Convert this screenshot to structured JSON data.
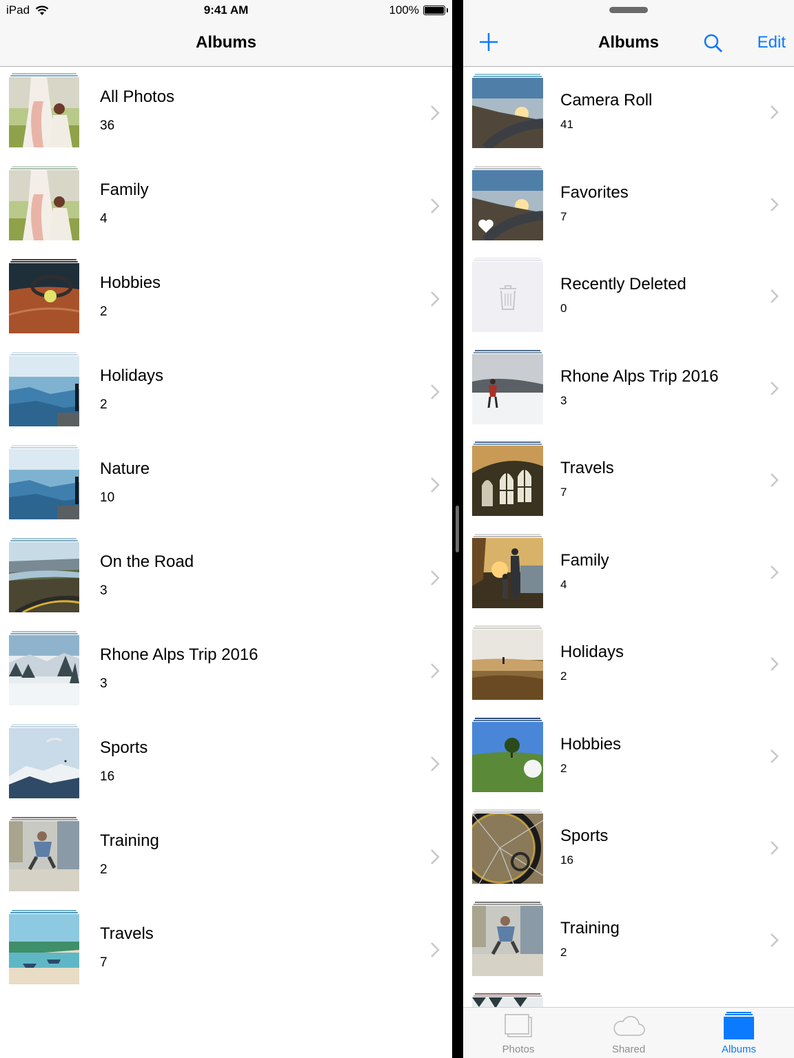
{
  "status_bar": {
    "device": "iPad",
    "time": "9:41 AM",
    "battery": "100%"
  },
  "left_pane": {
    "title": "Albums",
    "albums": [
      {
        "name": "All Photos",
        "count": "36"
      },
      {
        "name": "Family",
        "count": "4"
      },
      {
        "name": "Hobbies",
        "count": "2"
      },
      {
        "name": "Holidays",
        "count": "2"
      },
      {
        "name": "Nature",
        "count": "10"
      },
      {
        "name": "On the Road",
        "count": "3"
      },
      {
        "name": "Rhone Alps Trip 2016",
        "count": "3"
      },
      {
        "name": "Sports",
        "count": "16"
      },
      {
        "name": "Training",
        "count": "2"
      },
      {
        "name": "Travels",
        "count": "7"
      }
    ]
  },
  "right_pane": {
    "title": "Albums",
    "edit_label": "Edit",
    "albums": [
      {
        "name": "Camera Roll",
        "count": "41"
      },
      {
        "name": "Favorites",
        "count": "7"
      },
      {
        "name": "Recently Deleted",
        "count": "0"
      },
      {
        "name": "Rhone Alps Trip 2016",
        "count": "3"
      },
      {
        "name": "Travels",
        "count": "7"
      },
      {
        "name": "Family",
        "count": "4"
      },
      {
        "name": "Holidays",
        "count": "2"
      },
      {
        "name": "Hobbies",
        "count": "2"
      },
      {
        "name": "Sports",
        "count": "16"
      },
      {
        "name": "Training",
        "count": "2"
      }
    ],
    "tabs": [
      {
        "label": "Photos",
        "icon": "photos-tab-icon",
        "active": false
      },
      {
        "label": "Shared",
        "icon": "cloud-icon",
        "active": false
      },
      {
        "label": "Albums",
        "icon": "albums-tab-icon",
        "active": true
      }
    ]
  },
  "colors": {
    "accent": "#0a7aff",
    "separator": "#b2b2b2",
    "bar_background": "#f7f7f7",
    "chevron": "#c7c7cc"
  }
}
